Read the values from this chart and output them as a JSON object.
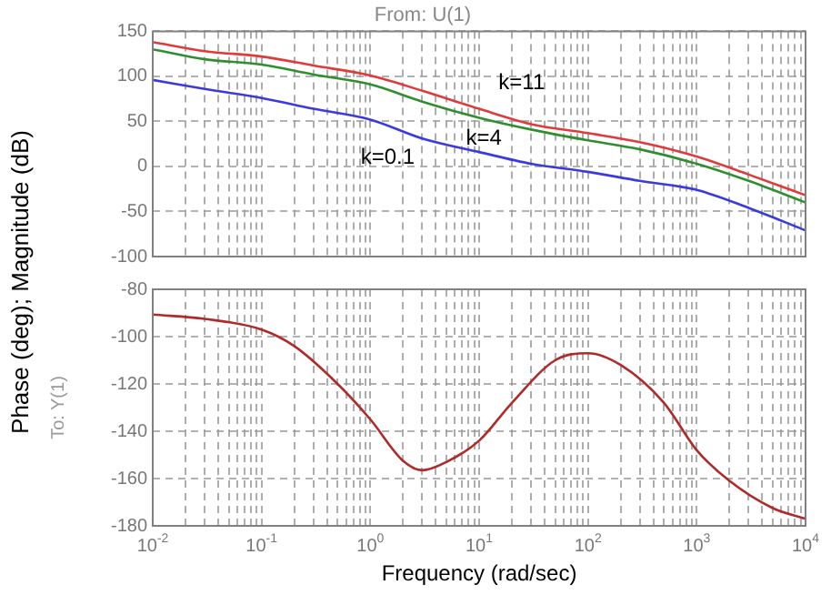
{
  "chart_data": [
    {
      "type": "line",
      "title": "From: U(1)",
      "ylabel": "Phase (deg); Magnitude (dB)",
      "log": "x",
      "grid": true,
      "legend": false,
      "tick_labels": "y",
      "marker": "none",
      "x": [
        0.01,
        0.03,
        0.1,
        0.3,
        1,
        3,
        10,
        30,
        100,
        300,
        1000,
        3000,
        10000
      ],
      "series": [
        {
          "color": "#e03a3a",
          "values": [
            138,
            128,
            122,
            112,
            101,
            84,
            64,
            47,
            37,
            27,
            11,
            -9,
            -32
          ]
        },
        {
          "color": "#2f8f2f",
          "values": [
            130,
            119,
            113,
            102,
            91,
            72,
            54,
            41,
            29,
            19,
            3,
            -16,
            -40
          ]
        },
        {
          "color": "#3a3ae0",
          "values": [
            96,
            86,
            76,
            64,
            52,
            31,
            16,
            3,
            -6,
            -16,
            -26,
            -46,
            -71
          ]
        }
      ],
      "annotations": [
        {
          "text": "k=11",
          "x": 19,
          "y": 56
        },
        {
          "text": "k=4",
          "x": 14,
          "y": 49
        },
        {
          "text": "k=0.1",
          "x": 1.9,
          "y": 40
        }
      ],
      "xlim": [
        0.01,
        10000
      ],
      "ylim": [
        -100,
        150
      ],
      "yticks": [
        -100,
        -50,
        0,
        50,
        100,
        150
      ],
      "xticks": [
        {
          "value": 0.01,
          "label": null
        },
        {
          "value": 0.02,
          "label": null
        },
        {
          "value": 0.03,
          "label": null
        },
        {
          "value": 0.04,
          "label": null
        },
        {
          "value": 0.05,
          "label": null
        },
        {
          "value": 0.06,
          "label": null
        },
        {
          "value": 0.07,
          "label": null
        },
        {
          "value": 0.08,
          "label": null
        },
        {
          "value": 0.09,
          "label": null
        },
        {
          "value": 0.1,
          "label": null
        },
        {
          "value": 0.2,
          "label": null
        },
        {
          "value": 0.3,
          "label": null
        },
        {
          "value": 0.4,
          "label": null
        },
        {
          "value": 0.5,
          "label": null
        },
        {
          "value": 0.6,
          "label": null
        },
        {
          "value": 0.7,
          "label": null
        },
        {
          "value": 0.8,
          "label": null
        },
        {
          "value": 0.9,
          "label": null
        },
        {
          "value": 1,
          "label": null
        },
        {
          "value": 2,
          "label": null
        },
        {
          "value": 3,
          "label": null
        },
        {
          "value": 4,
          "label": null
        },
        {
          "value": 5,
          "label": null
        },
        {
          "value": 6,
          "label": null
        },
        {
          "value": 7,
          "label": null
        },
        {
          "value": 8,
          "label": null
        },
        {
          "value": 9,
          "label": null
        },
        {
          "value": 10,
          "label": null
        },
        {
          "value": 20,
          "label": null
        },
        {
          "value": 30,
          "label": null
        },
        {
          "value": 40,
          "label": null
        },
        {
          "value": 50,
          "label": null
        },
        {
          "value": 60,
          "label": null
        },
        {
          "value": 70,
          "label": null
        },
        {
          "value": 80,
          "label": null
        },
        {
          "value": 90,
          "label": null
        },
        {
          "value": 100,
          "label": null
        },
        {
          "value": 200,
          "label": null
        },
        {
          "value": 300,
          "label": null
        },
        {
          "value": 400,
          "label": null
        },
        {
          "value": 500,
          "label": null
        },
        {
          "value": 600,
          "label": null
        },
        {
          "value": 700,
          "label": null
        },
        {
          "value": 800,
          "label": null
        },
        {
          "value": 900,
          "label": null
        },
        {
          "value": 1000,
          "label": null
        },
        {
          "value": 2000,
          "label": null
        },
        {
          "value": 3000,
          "label": null
        },
        {
          "value": 4000,
          "label": null
        },
        {
          "value": 5000,
          "label": null
        },
        {
          "value": 6000,
          "label": null
        },
        {
          "value": 7000,
          "label": null
        },
        {
          "value": 8000,
          "label": null
        },
        {
          "value": 9000,
          "label": null
        },
        {
          "value": 10000,
          "label": null
        }
      ]
    },
    {
      "type": "line",
      "ylabel": "To: Y(1)",
      "xlabel": "Frequency (rad/sec)",
      "log": "x",
      "grid": true,
      "legend": false,
      "marker": "none",
      "x": [
        0.01,
        0.03,
        0.1,
        0.2,
        0.5,
        1,
        2,
        3,
        5,
        10,
        20,
        50,
        100,
        200,
        500,
        1000,
        2000,
        5000,
        10000
      ],
      "series": [
        {
          "color": "#b02a2a",
          "values": [
            -90.7,
            -92.5,
            -97,
            -104,
            -120,
            -135,
            -152.5,
            -156.5,
            -153,
            -144,
            -128,
            -110,
            -107,
            -112,
            -128,
            -148,
            -161,
            -172.5,
            -177
          ]
        }
      ],
      "xlim": [
        0.01,
        10000
      ],
      "ylim": [
        -180,
        -80
      ],
      "yticks": [
        -180,
        -160,
        -140,
        -120,
        -100,
        -80
      ],
      "xticks": [
        {
          "value": 0.01,
          "label": "10$^{-2}$"
        },
        {
          "value": 0.02,
          "label": null
        },
        {
          "value": 0.03,
          "label": null
        },
        {
          "value": 0.04,
          "label": null
        },
        {
          "value": 0.05,
          "label": null
        },
        {
          "value": 0.06,
          "label": null
        },
        {
          "value": 0.07,
          "label": null
        },
        {
          "value": 0.08,
          "label": null
        },
        {
          "value": 0.09,
          "label": null
        },
        {
          "value": 0.1,
          "label": "10$^{-1}$"
        },
        {
          "value": 0.2,
          "label": null
        },
        {
          "value": 0.3,
          "label": null
        },
        {
          "value": 0.4,
          "label": null
        },
        {
          "value": 0.5,
          "label": null
        },
        {
          "value": 0.6,
          "label": null
        },
        {
          "value": 0.7,
          "label": null
        },
        {
          "value": 0.8,
          "label": null
        },
        {
          "value": 0.9,
          "label": null
        },
        {
          "value": 1,
          "label": "10$^{0}$"
        },
        {
          "value": 2,
          "label": null
        },
        {
          "value": 3,
          "label": null
        },
        {
          "value": 4,
          "label": null
        },
        {
          "value": 5,
          "label": null
        },
        {
          "value": 6,
          "label": null
        },
        {
          "value": 7,
          "label": null
        },
        {
          "value": 8,
          "label": null
        },
        {
          "value": 9,
          "label": null
        },
        {
          "value": 10,
          "label": "10$^{1}$"
        },
        {
          "value": 20,
          "label": null
        },
        {
          "value": 30,
          "label": null
        },
        {
          "value": 40,
          "label": null
        },
        {
          "value": 50,
          "label": null
        },
        {
          "value": 60,
          "label": null
        },
        {
          "value": 70,
          "label": null
        },
        {
          "value": 80,
          "label": null
        },
        {
          "value": 90,
          "label": null
        },
        {
          "value": 100,
          "label": "10$^{2}$"
        },
        {
          "value": 200,
          "label": null
        },
        {
          "value": 300,
          "label": null
        },
        {
          "value": 400,
          "label": null
        },
        {
          "value": 500,
          "label": null
        },
        {
          "value": 600,
          "label": null
        },
        {
          "value": 700,
          "label": null
        },
        {
          "value": 800,
          "label": null
        },
        {
          "value": 900,
          "label": null
        },
        {
          "value": 1000,
          "label": "10$^{3}$"
        },
        {
          "value": 2000,
          "label": null
        },
        {
          "value": 3000,
          "label": null
        },
        {
          "value": 4000,
          "label": null
        },
        {
          "value": 5000,
          "label": null
        },
        {
          "value": 6000,
          "label": null
        },
        {
          "value": 7000,
          "label": null
        },
        {
          "value": 8000,
          "label": null
        },
        {
          "value": 9000,
          "label": null
        },
        {
          "value": 10000,
          "label": "10$^{4}$"
        }
      ]
    }
  ]
}
